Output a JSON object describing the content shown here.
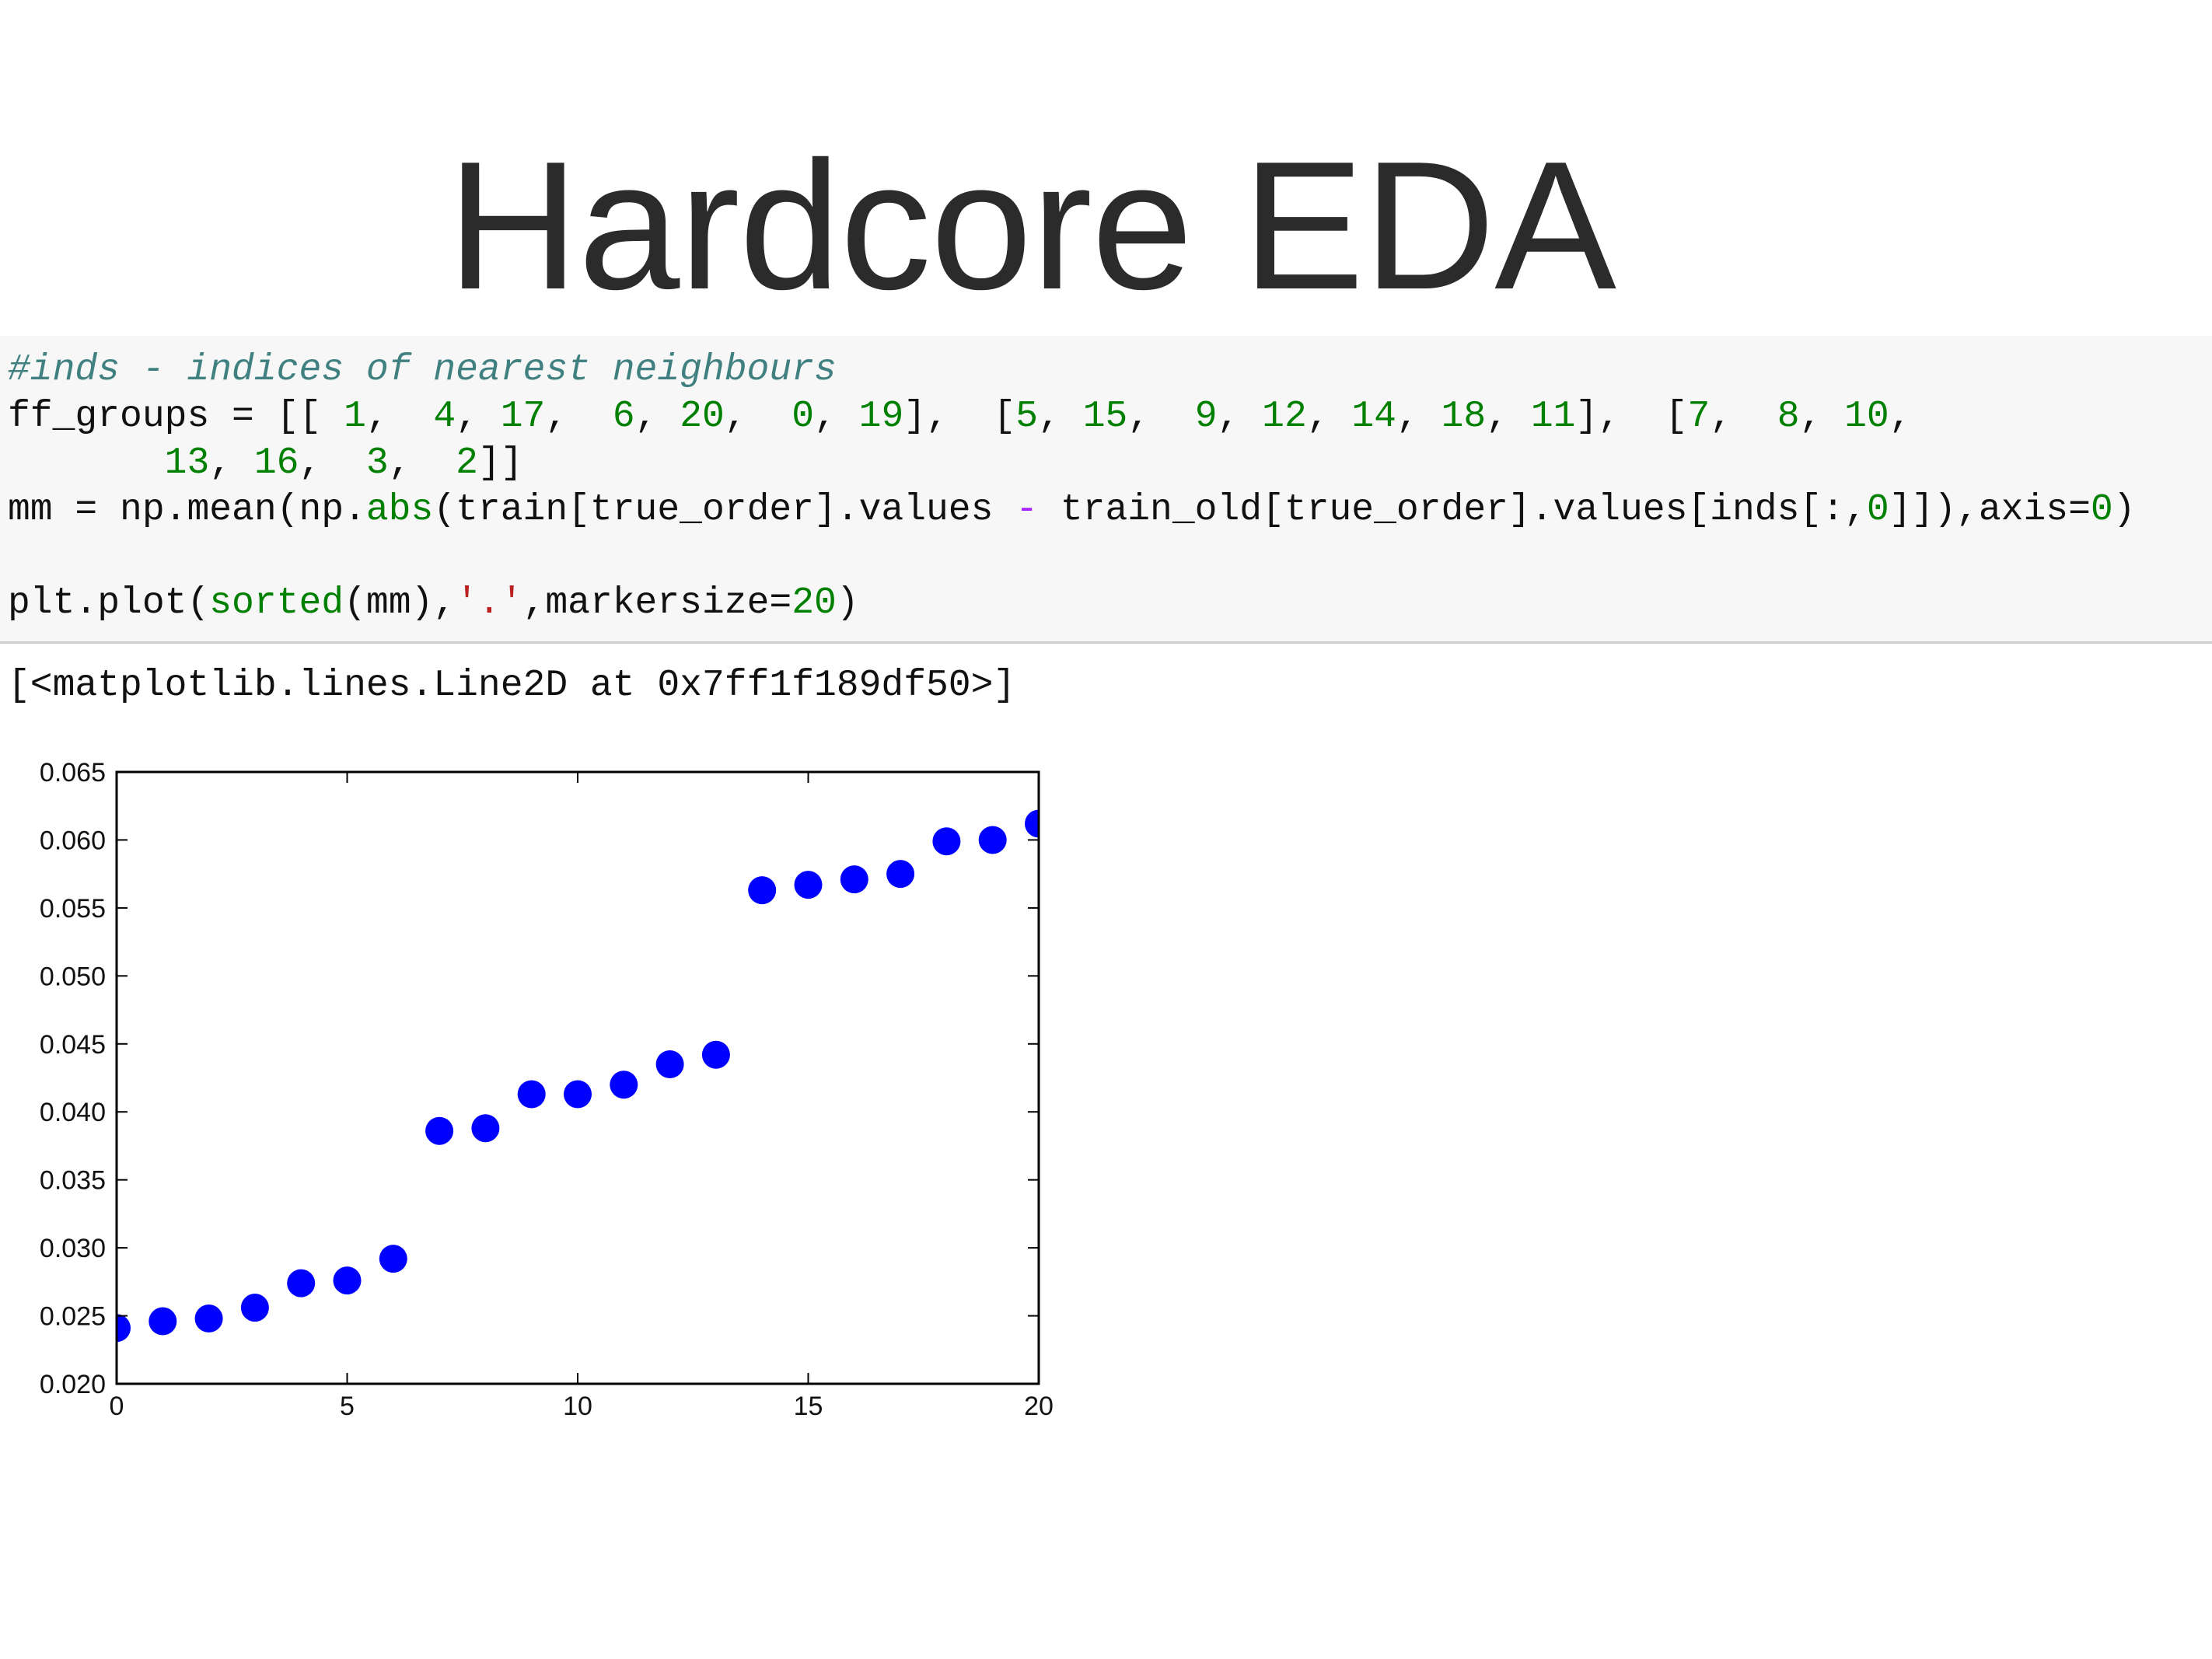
{
  "slide": {
    "title": "Hardcore EDA"
  },
  "code": {
    "comment": "#inds - indices of nearest neighbours",
    "line1_prefix": "ff_groups = [[ ",
    "group1": [
      "1",
      "4",
      "17",
      "6",
      "20",
      "0",
      "19"
    ],
    "group2": [
      "5",
      "15",
      "9",
      "12",
      "14",
      "18",
      "11"
    ],
    "group3_row1": [
      "7",
      "8",
      "10"
    ],
    "group3_row2": [
      "13",
      "16",
      "3",
      "2"
    ],
    "mm_prefix": "mm = np.mean(np.",
    "mm_abs": "abs",
    "mm_mid": "(train[true_order].values ",
    "mm_op": "-",
    "mm_mid2": " train_old[true_order].values[inds[:,",
    "mm_zero": "0",
    "mm_mid3": "]]),axis=",
    "mm_axis": "0",
    "mm_end": ")",
    "plot_prefix": "plt.plot(",
    "plot_fn": "sorted",
    "plot_mid": "(mm),",
    "plot_str": "'.'",
    "plot_mid2": ",markersize=",
    "plot_num": "20",
    "plot_end": ")"
  },
  "output": {
    "text": "[<matplotlib.lines.Line2D at 0x7ff1f189df50>]"
  },
  "chart_data": {
    "type": "scatter",
    "title": "",
    "xlabel": "",
    "ylabel": "",
    "xlim": [
      0,
      20
    ],
    "ylim": [
      0.02,
      0.065
    ],
    "xticks": [
      "0",
      "5",
      "10",
      "15",
      "20"
    ],
    "yticks": [
      "0.020",
      "0.025",
      "0.030",
      "0.035",
      "0.040",
      "0.045",
      "0.050",
      "0.055",
      "0.060",
      "0.065"
    ],
    "grid": false,
    "marker_color": "#0000ff",
    "series": [
      {
        "x": [
          0,
          1,
          2,
          3,
          4,
          5,
          6,
          7,
          8,
          9,
          10,
          11,
          12,
          13,
          14,
          15,
          16,
          17,
          18,
          19,
          20
        ],
        "values": [
          0.0241,
          0.0246,
          0.0248,
          0.0256,
          0.0274,
          0.0276,
          0.0292,
          0.0386,
          0.0388,
          0.0413,
          0.0413,
          0.042,
          0.0435,
          0.0442,
          0.0563,
          0.0567,
          0.0571,
          0.0575,
          0.0599,
          0.06,
          0.0612
        ]
      }
    ]
  }
}
